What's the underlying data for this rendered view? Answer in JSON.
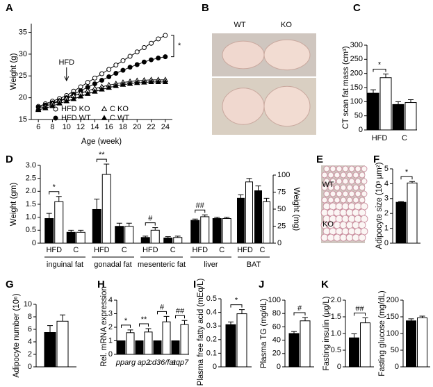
{
  "chart_data": [
    {
      "type": "line",
      "label": "A",
      "xlabel": "Age (week)",
      "ylabel": "Weight (g)",
      "x": [
        6,
        7,
        8,
        9,
        10,
        11,
        12,
        13,
        14,
        15,
        16,
        17,
        18,
        19,
        20,
        21,
        22,
        23,
        24
      ],
      "xlim": [
        5,
        25
      ],
      "xticks": [
        6,
        8,
        10,
        12,
        14,
        16,
        18,
        20,
        22,
        24
      ],
      "ylim": [
        15,
        37
      ],
      "yticks": [
        15,
        20,
        25,
        30,
        35
      ],
      "series": [
        {
          "name": "HFD KO",
          "color": "#000000",
          "marker": "circle",
          "filled": false,
          "values": [
            18,
            18.6,
            19.2,
            19.8,
            20.5,
            21.5,
            22.5,
            23.5,
            24.5,
            25.5,
            26.5,
            27.5,
            28.5,
            29.5,
            30.5,
            31.5,
            32.5,
            33.5,
            34.3
          ]
        },
        {
          "name": "HFD WT",
          "color": "#000000",
          "marker": "circle",
          "filled": true,
          "values": [
            17.8,
            18.3,
            18.8,
            19.3,
            20,
            20.8,
            21.6,
            22.4,
            23.2,
            24,
            24.8,
            25.6,
            26.3,
            27,
            27.6,
            28.2,
            28.7,
            29.1,
            29.4
          ]
        },
        {
          "name": "C KO",
          "color": "#000000",
          "marker": "triangle",
          "filled": false,
          "values": [
            17.5,
            18,
            18.6,
            19.2,
            19.8,
            20.4,
            21,
            21.6,
            22.1,
            22.5,
            22.9,
            23.2,
            23.5,
            23.7,
            23.9,
            24,
            24.1,
            24.1,
            24.1
          ]
        },
        {
          "name": "C WT",
          "color": "#000000",
          "marker": "triangle",
          "filled": true,
          "values": [
            17.2,
            17.6,
            18.1,
            18.7,
            19.2,
            19.7,
            20.3,
            20.9,
            21.4,
            21.9,
            22.3,
            22.7,
            23,
            23.2,
            23.4,
            23.5,
            23.6,
            23.6,
            23.6
          ]
        }
      ],
      "annotations": [
        "HFD",
        "*"
      ]
    },
    {
      "type": "image",
      "label": "B",
      "image_labels": [
        "WT",
        "KO"
      ]
    },
    {
      "type": "bar",
      "label": "C",
      "ylabel": "CT scan fat mass (cm³)",
      "categories": [
        "HFD",
        "C"
      ],
      "ylim": [
        0,
        300
      ],
      "yticks": [
        0,
        50,
        100,
        150,
        200,
        250,
        300
      ],
      "series": [
        {
          "color": "#000000",
          "values": [
            130,
            90
          ],
          "errors": [
            12,
            10
          ]
        },
        {
          "color": "#ffffff",
          "values": [
            185,
            97
          ],
          "errors": [
            13,
            10
          ]
        }
      ],
      "annotations": [
        "*"
      ]
    },
    {
      "type": "grouped_bar",
      "label": "D",
      "ylabel": "Weight (gm)",
      "y2label": "Weight (mg)",
      "ylim": [
        0,
        3
      ],
      "yticks": [
        0,
        0.5,
        {
          "value": 1,
          "label": "1.0"
        },
        1.5,
        {
          "value": 2,
          "label": "2.0"
        },
        2.5,
        {
          "value": 3,
          "label": "3.0"
        }
      ],
      "y2lim": [
        0,
        100
      ],
      "y2ticks": [
        0,
        25,
        50,
        75,
        100
      ],
      "colors": [
        "#000000",
        "#ffffff"
      ],
      "groups": [
        {
          "label": "inguinal fat",
          "subcategories": [
            "HFD",
            "C"
          ],
          "values": [
            [
              0.95,
              1.6
            ],
            [
              0.42,
              0.42
            ]
          ],
          "errors": [
            [
              0.2,
              0.2
            ],
            [
              0.08,
              0.08
            ]
          ]
        },
        {
          "label": "gonadal fat",
          "subcategories": [
            "HFD",
            "C"
          ],
          "values": [
            [
              1.3,
              2.65
            ],
            [
              0.65,
              0.65
            ]
          ],
          "errors": [
            [
              0.4,
              0.4
            ],
            [
              0.12,
              0.12
            ]
          ]
        },
        {
          "label": "mesenteric fat",
          "subcategories": [
            "HFD",
            "C"
          ],
          "values": [
            [
              0.22,
              0.5
            ],
            [
              0.2,
              0.22
            ]
          ],
          "errors": [
            [
              0.05,
              0.1
            ],
            [
              0.05,
              0.05
            ]
          ]
        },
        {
          "label": "liver",
          "subcategories": [
            "HFD",
            "C"
          ],
          "values": [
            [
              0.88,
              1.02
            ],
            [
              0.95,
              0.95
            ]
          ],
          "errors": [
            [
              0.05,
              0.07
            ],
            [
              0.05,
              0.05
            ]
          ]
        },
        {
          "label": "BAT",
          "axis": "y2",
          "subcategories": [
            "HFD",
            "C"
          ],
          "values": [
            [
              66,
              90
            ],
            [
              77,
              61
            ]
          ],
          "errors": [
            [
              5,
              5
            ],
            [
              7,
              5
            ]
          ]
        }
      ],
      "annotations": [
        "*",
        "**",
        "#",
        "##"
      ]
    },
    {
      "type": "image",
      "label": "E",
      "image_labels": [
        "WT",
        "KO"
      ]
    },
    {
      "type": "bar",
      "label": "F",
      "ylabel": "Adipocyte size (10³ μm²)",
      "ylim": [
        0,
        5
      ],
      "yticks": [
        0,
        1,
        2,
        3,
        4,
        5
      ],
      "series": [
        {
          "color": "#000000",
          "values": [
            2.75
          ],
          "errors": [
            0.05
          ]
        },
        {
          "color": "#ffffff",
          "values": [
            4.05
          ],
          "errors": [
            0.1
          ]
        }
      ],
      "annotations": [
        "*"
      ]
    },
    {
      "type": "bar",
      "label": "G",
      "ylabel": "Adipocyte number (10⁶)",
      "ylim": [
        0,
        10
      ],
      "yticks": [
        0,
        2,
        4,
        6,
        8,
        10
      ],
      "series": [
        {
          "color": "#000000",
          "values": [
            5.5
          ],
          "errors": [
            1.1
          ]
        },
        {
          "color": "#ffffff",
          "values": [
            7.3
          ],
          "errors": [
            1.0
          ]
        }
      ]
    },
    {
      "type": "bar",
      "label": "H",
      "ylabel": "Rel. mRNA expression",
      "categories": [
        "pparg",
        "ap2",
        "cd36/fat",
        "aqp7"
      ],
      "ylim": [
        0,
        4
      ],
      "yticks": [
        0,
        1,
        2,
        3,
        4
      ],
      "series": [
        {
          "color": "#000000",
          "values": [
            1,
            1,
            1,
            1
          ],
          "errors": [
            0,
            0,
            0,
            0
          ]
        },
        {
          "color": "#ffffff",
          "values": [
            1.6,
            1.65,
            2.4,
            2.2
          ],
          "errors": [
            0.2,
            0.25,
            0.4,
            0.3
          ]
        }
      ],
      "annotations": [
        "*",
        "**",
        "#",
        "##"
      ]
    },
    {
      "type": "bar",
      "label": "I",
      "ylabel": "Plasma free fatty acid (mEq/L)",
      "ylim": [
        0,
        0.5
      ],
      "yticks": [
        0,
        0.1,
        0.2,
        0.3,
        0.4,
        0.5
      ],
      "series": [
        {
          "color": "#000000",
          "values": [
            0.31
          ],
          "errors": [
            0.02
          ]
        },
        {
          "color": "#ffffff",
          "values": [
            0.39
          ],
          "errors": [
            0.03
          ]
        }
      ],
      "annotations": [
        "*"
      ]
    },
    {
      "type": "bar",
      "label": "J",
      "ylabel": "Plasma TG (mg/dL)",
      "ylim": [
        0,
        100
      ],
      "yticks": [
        0,
        20,
        40,
        60,
        80,
        100
      ],
      "series": [
        {
          "color": "#000000",
          "values": [
            50
          ],
          "errors": [
            3
          ]
        },
        {
          "color": "#ffffff",
          "values": [
            69
          ],
          "errors": [
            5
          ]
        }
      ],
      "annotations": [
        "#"
      ]
    },
    {
      "type": "bar",
      "label": "K",
      "ylabel": "Fasting insulin (μg/L)",
      "ylim": [
        0,
        2
      ],
      "yticks": [
        0,
        0.5,
        {
          "value": 1,
          "label": "1.0"
        },
        1.5,
        {
          "value": 2,
          "label": "2.0"
        }
      ],
      "series": [
        {
          "color": "#000000",
          "values": [
            0.87
          ],
          "errors": [
            0.12
          ]
        },
        {
          "color": "#ffffff",
          "values": [
            1.32
          ],
          "errors": [
            0.15
          ]
        }
      ],
      "annotations": [
        "##"
      ]
    },
    {
      "type": "bar",
      "ylabel": "Fasting glucose (mg/dL)",
      "ylim": [
        0,
        200
      ],
      "yticks": [
        0,
        50,
        100,
        150,
        200
      ],
      "series": [
        {
          "color": "#000000",
          "values": [
            138
          ],
          "errors": [
            6
          ]
        },
        {
          "color": "#ffffff",
          "values": [
            147
          ],
          "errors": [
            5
          ]
        }
      ]
    }
  ]
}
